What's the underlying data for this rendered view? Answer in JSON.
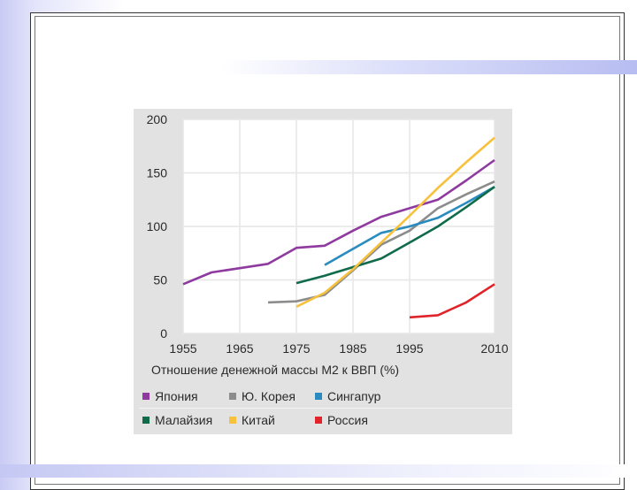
{
  "chart_data": {
    "type": "line",
    "title": "",
    "xlabel": "Отношение денежной массы М2 к ВВП (%)",
    "ylabel": "",
    "x_ticks": [
      "1955",
      "1965",
      "1975",
      "1985",
      "1995",
      "2010"
    ],
    "x_tick_values": [
      1955,
      1965,
      1975,
      1985,
      1995,
      2010
    ],
    "y_ticks": [
      "0",
      "50",
      "100",
      "150",
      "200"
    ],
    "y_tick_values": [
      0,
      50,
      100,
      150,
      200
    ],
    "xlim": [
      1955,
      2010
    ],
    "ylim": [
      0,
      200
    ],
    "grid": "both",
    "legend_position": "bottom",
    "series": [
      {
        "name": "Япония",
        "color": "#8e3a9f",
        "points": [
          [
            1955,
            46
          ],
          [
            1960,
            57
          ],
          [
            1965,
            61
          ],
          [
            1970,
            65
          ],
          [
            1975,
            80
          ],
          [
            1980,
            82
          ],
          [
            1985,
            96
          ],
          [
            1990,
            109
          ],
          [
            1995,
            117
          ],
          [
            2000,
            125
          ],
          [
            2005,
            143
          ],
          [
            2010,
            162
          ]
        ]
      },
      {
        "name": "Ю. Корея",
        "color": "#8c8c8c",
        "points": [
          [
            1970,
            29
          ],
          [
            1975,
            30
          ],
          [
            1980,
            36
          ],
          [
            1985,
            59
          ],
          [
            1990,
            83
          ],
          [
            1995,
            96
          ],
          [
            2000,
            117
          ],
          [
            2005,
            130
          ],
          [
            2010,
            142
          ]
        ]
      },
      {
        "name": "Сингапур",
        "color": "#2a8bbf",
        "points": [
          [
            1980,
            64
          ],
          [
            1985,
            79
          ],
          [
            1990,
            94
          ],
          [
            1995,
            100
          ],
          [
            2000,
            108
          ],
          [
            2005,
            122
          ],
          [
            2010,
            137
          ]
        ]
      },
      {
        "name": "Малайзия",
        "color": "#0f6b4a",
        "points": [
          [
            1975,
            47
          ],
          [
            1980,
            54
          ],
          [
            1985,
            62
          ],
          [
            1990,
            70
          ],
          [
            1995,
            85
          ],
          [
            2000,
            100
          ],
          [
            2005,
            118
          ],
          [
            2010,
            137
          ]
        ]
      },
      {
        "name": "Китай",
        "color": "#f7c13c",
        "points": [
          [
            1975,
            25
          ],
          [
            1980,
            38
          ],
          [
            1985,
            60
          ],
          [
            1990,
            85
          ],
          [
            1995,
            110
          ],
          [
            2000,
            136
          ],
          [
            2005,
            160
          ],
          [
            2010,
            183
          ]
        ]
      },
      {
        "name": "Россия",
        "color": "#e0242a",
        "points": [
          [
            1995,
            15
          ],
          [
            2000,
            17
          ],
          [
            2005,
            29
          ],
          [
            2010,
            46
          ]
        ]
      }
    ]
  }
}
